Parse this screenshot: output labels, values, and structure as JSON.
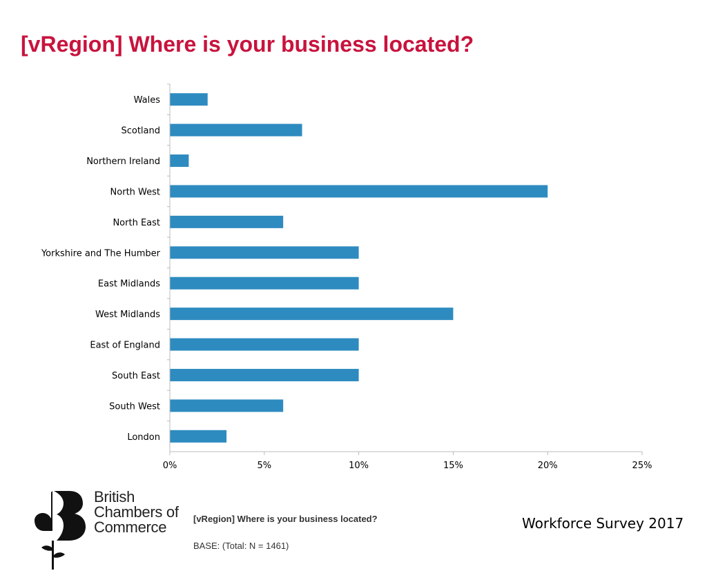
{
  "header": {
    "title": "[vRegion] Where is your business located?"
  },
  "chart_data": {
    "type": "bar",
    "orientation": "horizontal",
    "categories": [
      "Wales",
      "Scotland",
      "Northern Ireland",
      "North West",
      "North East",
      "Yorkshire and The Humber",
      "East Midlands",
      "West Midlands",
      "East of England",
      "South East",
      "South West",
      "London"
    ],
    "values": [
      2,
      7,
      1,
      20,
      6,
      10,
      10,
      15,
      10,
      10,
      6,
      3
    ],
    "xticks": [
      "0%",
      "5%",
      "10%",
      "15%",
      "20%",
      "25%"
    ],
    "xlim": [
      0,
      25
    ],
    "unit": "%",
    "bar_color": "#2e8bc0",
    "grid": false
  },
  "footer": {
    "question": "[vRegion] Where is your business located?",
    "base": "BASE: (Total: N = 1461)",
    "survey": "Workforce Survey 2017"
  },
  "logo": {
    "line1": "British",
    "line2": "Chambers of",
    "line3": "Commerce"
  }
}
